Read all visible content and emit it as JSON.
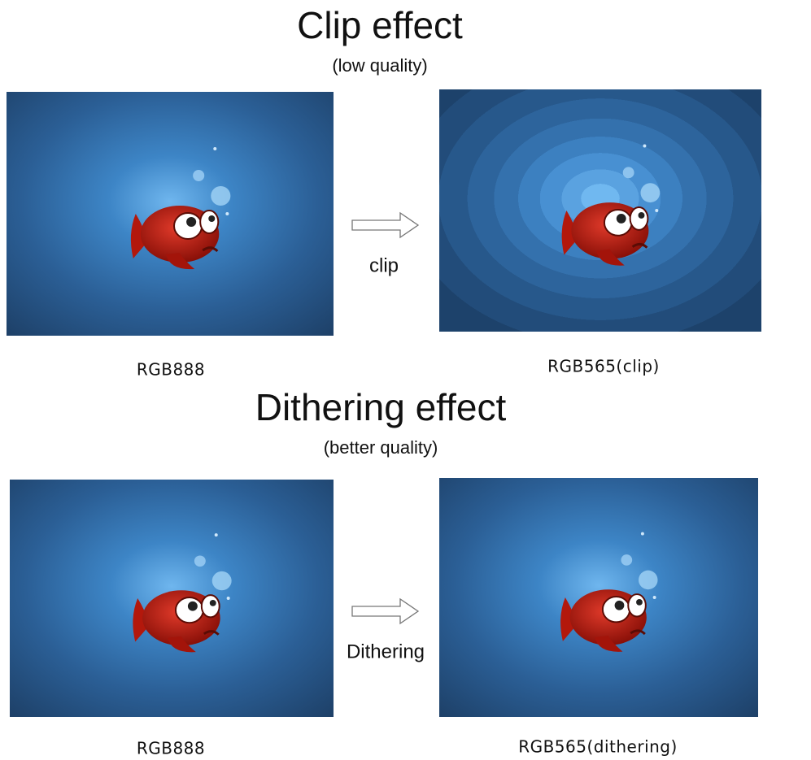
{
  "sections": [
    {
      "title": "Clip effect",
      "subtitle": "(low quality)",
      "left_caption": "RGB888",
      "arrow_label": "clip",
      "right_caption": "RGB565(clip)"
    },
    {
      "title": "Dithering effect",
      "subtitle": "(better quality)",
      "left_caption": "RGB888",
      "arrow_label": "Dithering",
      "right_caption": "RGB565(dithering)"
    }
  ]
}
